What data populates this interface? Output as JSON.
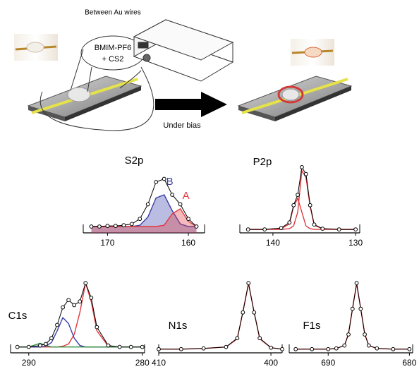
{
  "diagram": {
    "caption": "Between Au wires",
    "bubble_line1": "BMIM-PF6",
    "bubble_line2": "+ CS2",
    "arrow_label": "Under bias"
  },
  "chart_data": [
    {
      "type": "line",
      "title": "S2p",
      "xlim": [
        173,
        158
      ],
      "xticks": [
        170,
        160
      ],
      "ylim": [
        0,
        100
      ],
      "x": [
        172,
        171,
        170,
        169,
        168,
        167,
        166,
        165,
        164,
        163,
        162,
        161,
        160,
        159
      ],
      "series": [
        {
          "color": "#000000",
          "style": "markers",
          "values": [
            10,
            10,
            11,
            11,
            12,
            14,
            22,
            45,
            80,
            85,
            60,
            45,
            22,
            10
          ]
        },
        {
          "name": "B",
          "color": "#3b3fa8",
          "fill": true,
          "values": [
            10,
            10,
            10,
            10,
            10,
            10,
            12,
            25,
            55,
            60,
            35,
            14,
            10,
            10
          ]
        },
        {
          "name": "A",
          "color": "#e0393e",
          "fill": true,
          "values": [
            10,
            10,
            10,
            10,
            10,
            10,
            10,
            10,
            10,
            12,
            30,
            38,
            18,
            10
          ]
        }
      ]
    },
    {
      "type": "line",
      "title": "P2p",
      "xlim": [
        144,
        129.5
      ],
      "xticks": [
        140,
        130
      ],
      "ylim": [
        0,
        100
      ],
      "x": [
        143,
        141,
        139,
        138,
        137.5,
        137,
        136.5,
        136,
        135.5,
        135,
        134,
        132,
        130
      ],
      "series": [
        {
          "color": "#000000",
          "style": "markers",
          "values": [
            5,
            5,
            7,
            15,
            40,
            55,
            95,
            85,
            40,
            12,
            6,
            5,
            5
          ]
        },
        {
          "color": "#e0393e",
          "values": [
            5,
            5,
            6,
            13,
            38,
            50,
            30,
            10,
            6,
            5,
            5,
            5,
            5
          ]
        },
        {
          "color": "#e0393e",
          "values": [
            5,
            5,
            5,
            6,
            10,
            30,
            90,
            80,
            38,
            11,
            6,
            5,
            5
          ]
        }
      ]
    },
    {
      "type": "line",
      "title": "C1s",
      "xlim": [
        291.6,
        279.8
      ],
      "xticks": [
        290,
        280
      ],
      "ylim": [
        0,
        100
      ],
      "x": [
        291,
        290,
        289,
        288.5,
        288,
        287.5,
        287,
        286.5,
        286,
        285.5,
        285,
        284.5,
        284,
        283,
        282,
        281,
        280
      ],
      "series": [
        {
          "color": "#000000",
          "style": "markers",
          "values": [
            8,
            8,
            10,
            12,
            20,
            38,
            62,
            72,
            65,
            70,
            95,
            75,
            35,
            10,
            8,
            8,
            8
          ]
        },
        {
          "color": "#e0393e",
          "values": [
            8,
            8,
            8,
            8,
            8,
            8,
            9,
            12,
            25,
            55,
            95,
            70,
            30,
            9,
            8,
            8,
            8
          ]
        },
        {
          "color": "#3b3fa8",
          "values": [
            8,
            8,
            8,
            9,
            14,
            30,
            48,
            40,
            20,
            10,
            8,
            8,
            8,
            8,
            8,
            8,
            8
          ]
        },
        {
          "color": "#2e8b3a",
          "values": [
            8,
            8,
            13,
            10,
            8,
            8,
            8,
            8,
            8,
            8,
            8,
            8,
            8,
            8,
            8,
            8,
            8
          ]
        }
      ]
    },
    {
      "type": "line",
      "title": "N1s",
      "xlim": [
        410,
        399
      ],
      "xticks": [
        410,
        400
      ],
      "ylim": [
        0,
        100
      ],
      "x": [
        410,
        408,
        406,
        404,
        403,
        402.5,
        402,
        401.5,
        401,
        400,
        399
      ],
      "series": [
        {
          "color": "#000000",
          "style": "markers",
          "values": [
            5,
            5,
            6,
            8,
            20,
            55,
            95,
            55,
            20,
            7,
            5
          ]
        },
        {
          "color": "#e0393e",
          "values": [
            5,
            5,
            6,
            8,
            19,
            56,
            94,
            56,
            19,
            7,
            5
          ]
        }
      ]
    },
    {
      "type": "line",
      "title": "F1s",
      "xlim": [
        694.8,
        679.6
      ],
      "xticks": [
        690,
        680
      ],
      "ylim": [
        0,
        100
      ],
      "x": [
        694,
        692,
        690,
        689,
        688,
        687.5,
        687,
        686.5,
        686,
        685.5,
        685,
        684,
        682,
        680
      ],
      "series": [
        {
          "color": "#000000",
          "style": "markers",
          "values": [
            5,
            5,
            5,
            6,
            10,
            25,
            60,
            95,
            60,
            25,
            10,
            6,
            5,
            5
          ]
        },
        {
          "color": "#e0393e",
          "values": [
            5,
            5,
            5,
            6,
            10,
            26,
            61,
            94,
            61,
            26,
            10,
            6,
            5,
            5
          ]
        }
      ]
    }
  ]
}
